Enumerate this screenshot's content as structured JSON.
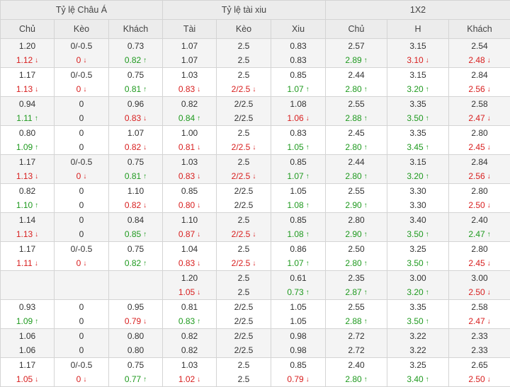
{
  "headers": {
    "groups": [
      "Tỷ lệ Châu Á",
      "Tỷ lệ tài xiu",
      "1X2"
    ],
    "columns": [
      "Chủ",
      "Kèo",
      "Khách",
      "Tài",
      "Kèo",
      "Xiu",
      "Chủ",
      "H",
      "Khách"
    ]
  },
  "colors": {
    "up": "#1f9a1f",
    "down": "#d81e1e",
    "header_bg": "#ececec",
    "alt_row_bg": "#f4f4f4"
  },
  "icons": {
    "up": "↑",
    "down": "↓"
  },
  "rows": [
    {
      "cells": [
        [
          [
            "1.20",
            ""
          ],
          [
            "1.12",
            "down"
          ]
        ],
        [
          [
            "0/-0.5",
            ""
          ],
          [
            "0",
            "down"
          ]
        ],
        [
          [
            "0.73",
            ""
          ],
          [
            "0.82",
            "up"
          ]
        ],
        [
          [
            "1.07",
            ""
          ],
          [
            "1.07",
            ""
          ]
        ],
        [
          [
            "2.5",
            ""
          ],
          [
            "2.5",
            ""
          ]
        ],
        [
          [
            "0.83",
            ""
          ],
          [
            "0.83",
            ""
          ]
        ],
        [
          [
            "2.57",
            ""
          ],
          [
            "2.89",
            "up"
          ]
        ],
        [
          [
            "3.15",
            ""
          ],
          [
            "3.10",
            "down"
          ]
        ],
        [
          [
            "2.54",
            ""
          ],
          [
            "2.48",
            "down"
          ]
        ]
      ]
    },
    {
      "cells": [
        [
          [
            "1.17",
            ""
          ],
          [
            "1.13",
            "down"
          ]
        ],
        [
          [
            "0/-0.5",
            ""
          ],
          [
            "0",
            "down"
          ]
        ],
        [
          [
            "0.75",
            ""
          ],
          [
            "0.81",
            "up"
          ]
        ],
        [
          [
            "1.03",
            ""
          ],
          [
            "0.83",
            "down"
          ]
        ],
        [
          [
            "2.5",
            ""
          ],
          [
            "2/2.5",
            "down"
          ]
        ],
        [
          [
            "0.85",
            ""
          ],
          [
            "1.07",
            "up"
          ]
        ],
        [
          [
            "2.44",
            ""
          ],
          [
            "2.80",
            "up"
          ]
        ],
        [
          [
            "3.15",
            ""
          ],
          [
            "3.20",
            "up"
          ]
        ],
        [
          [
            "2.84",
            ""
          ],
          [
            "2.56",
            "down"
          ]
        ]
      ]
    },
    {
      "cells": [
        [
          [
            "0.94",
            ""
          ],
          [
            "1.11",
            "up"
          ]
        ],
        [
          [
            "0",
            ""
          ],
          [
            "0",
            ""
          ]
        ],
        [
          [
            "0.96",
            ""
          ],
          [
            "0.83",
            "down"
          ]
        ],
        [
          [
            "0.82",
            ""
          ],
          [
            "0.84",
            "up"
          ]
        ],
        [
          [
            "2/2.5",
            ""
          ],
          [
            "2/2.5",
            ""
          ]
        ],
        [
          [
            "1.08",
            ""
          ],
          [
            "1.06",
            "down"
          ]
        ],
        [
          [
            "2.55",
            ""
          ],
          [
            "2.88",
            "up"
          ]
        ],
        [
          [
            "3.35",
            ""
          ],
          [
            "3.50",
            "up"
          ]
        ],
        [
          [
            "2.58",
            ""
          ],
          [
            "2.47",
            "down"
          ]
        ]
      ]
    },
    {
      "cells": [
        [
          [
            "0.80",
            ""
          ],
          [
            "1.09",
            "up"
          ]
        ],
        [
          [
            "0",
            ""
          ],
          [
            "0",
            ""
          ]
        ],
        [
          [
            "1.07",
            ""
          ],
          [
            "0.82",
            "down"
          ]
        ],
        [
          [
            "1.00",
            ""
          ],
          [
            "0.81",
            "down"
          ]
        ],
        [
          [
            "2.5",
            ""
          ],
          [
            "2/2.5",
            "down"
          ]
        ],
        [
          [
            "0.83",
            ""
          ],
          [
            "1.05",
            "up"
          ]
        ],
        [
          [
            "2.45",
            ""
          ],
          [
            "2.80",
            "up"
          ]
        ],
        [
          [
            "3.35",
            ""
          ],
          [
            "3.45",
            "up"
          ]
        ],
        [
          [
            "2.80",
            ""
          ],
          [
            "2.45",
            "down"
          ]
        ]
      ]
    },
    {
      "cells": [
        [
          [
            "1.17",
            ""
          ],
          [
            "1.13",
            "down"
          ]
        ],
        [
          [
            "0/-0.5",
            ""
          ],
          [
            "0",
            "down"
          ]
        ],
        [
          [
            "0.75",
            ""
          ],
          [
            "0.81",
            "up"
          ]
        ],
        [
          [
            "1.03",
            ""
          ],
          [
            "0.83",
            "down"
          ]
        ],
        [
          [
            "2.5",
            ""
          ],
          [
            "2/2.5",
            "down"
          ]
        ],
        [
          [
            "0.85",
            ""
          ],
          [
            "1.07",
            "up"
          ]
        ],
        [
          [
            "2.44",
            ""
          ],
          [
            "2.80",
            "up"
          ]
        ],
        [
          [
            "3.15",
            ""
          ],
          [
            "3.20",
            "up"
          ]
        ],
        [
          [
            "2.84",
            ""
          ],
          [
            "2.56",
            "down"
          ]
        ]
      ]
    },
    {
      "cells": [
        [
          [
            "0.82",
            ""
          ],
          [
            "1.10",
            "up"
          ]
        ],
        [
          [
            "0",
            ""
          ],
          [
            "0",
            ""
          ]
        ],
        [
          [
            "1.10",
            ""
          ],
          [
            "0.82",
            "down"
          ]
        ],
        [
          [
            "0.85",
            ""
          ],
          [
            "0.80",
            "down"
          ]
        ],
        [
          [
            "2/2.5",
            ""
          ],
          [
            "2/2.5",
            ""
          ]
        ],
        [
          [
            "1.05",
            ""
          ],
          [
            "1.08",
            "up"
          ]
        ],
        [
          [
            "2.55",
            ""
          ],
          [
            "2.90",
            "up"
          ]
        ],
        [
          [
            "3.30",
            ""
          ],
          [
            "3.30",
            ""
          ]
        ],
        [
          [
            "2.80",
            ""
          ],
          [
            "2.50",
            "down"
          ]
        ]
      ]
    },
    {
      "cells": [
        [
          [
            "1.14",
            ""
          ],
          [
            "1.13",
            "down"
          ]
        ],
        [
          [
            "0",
            ""
          ],
          [
            "0",
            ""
          ]
        ],
        [
          [
            "0.84",
            ""
          ],
          [
            "0.85",
            "up"
          ]
        ],
        [
          [
            "1.10",
            ""
          ],
          [
            "0.87",
            "down"
          ]
        ],
        [
          [
            "2.5",
            ""
          ],
          [
            "2/2.5",
            "down"
          ]
        ],
        [
          [
            "0.85",
            ""
          ],
          [
            "1.08",
            "up"
          ]
        ],
        [
          [
            "2.80",
            ""
          ],
          [
            "2.90",
            "up"
          ]
        ],
        [
          [
            "3.40",
            ""
          ],
          [
            "3.50",
            "up"
          ]
        ],
        [
          [
            "2.40",
            ""
          ],
          [
            "2.47",
            "up"
          ]
        ]
      ]
    },
    {
      "cells": [
        [
          [
            "1.17",
            ""
          ],
          [
            "1.11",
            "down"
          ]
        ],
        [
          [
            "0/-0.5",
            ""
          ],
          [
            "0",
            "down"
          ]
        ],
        [
          [
            "0.75",
            ""
          ],
          [
            "0.82",
            "up"
          ]
        ],
        [
          [
            "1.04",
            ""
          ],
          [
            "0.83",
            "down"
          ]
        ],
        [
          [
            "2.5",
            ""
          ],
          [
            "2/2.5",
            "down"
          ]
        ],
        [
          [
            "0.86",
            ""
          ],
          [
            "1.07",
            "up"
          ]
        ],
        [
          [
            "2.50",
            ""
          ],
          [
            "2.80",
            "up"
          ]
        ],
        [
          [
            "3.25",
            ""
          ],
          [
            "3.50",
            "up"
          ]
        ],
        [
          [
            "2.80",
            ""
          ],
          [
            "2.45",
            "down"
          ]
        ]
      ]
    },
    {
      "cells": [
        [],
        [],
        [],
        [
          [
            "1.20",
            ""
          ],
          [
            "1.05",
            "down"
          ]
        ],
        [
          [
            "2.5",
            ""
          ],
          [
            "2.5",
            ""
          ]
        ],
        [
          [
            "0.61",
            ""
          ],
          [
            "0.73",
            "up"
          ]
        ],
        [
          [
            "2.35",
            ""
          ],
          [
            "2.87",
            "up"
          ]
        ],
        [
          [
            "3.00",
            ""
          ],
          [
            "3.20",
            "up"
          ]
        ],
        [
          [
            "3.00",
            ""
          ],
          [
            "2.50",
            "down"
          ]
        ]
      ]
    },
    {
      "cells": [
        [
          [
            "0.93",
            ""
          ],
          [
            "1.09",
            "up"
          ]
        ],
        [
          [
            "0",
            ""
          ],
          [
            "0",
            ""
          ]
        ],
        [
          [
            "0.95",
            ""
          ],
          [
            "0.79",
            "down"
          ]
        ],
        [
          [
            "0.81",
            ""
          ],
          [
            "0.83",
            "up"
          ]
        ],
        [
          [
            "2/2.5",
            ""
          ],
          [
            "2/2.5",
            ""
          ]
        ],
        [
          [
            "1.05",
            ""
          ],
          [
            "1.05",
            ""
          ]
        ],
        [
          [
            "2.55",
            ""
          ],
          [
            "2.88",
            "up"
          ]
        ],
        [
          [
            "3.35",
            ""
          ],
          [
            "3.50",
            "up"
          ]
        ],
        [
          [
            "2.58",
            ""
          ],
          [
            "2.47",
            "down"
          ]
        ]
      ]
    },
    {
      "cells": [
        [
          [
            "1.06",
            ""
          ],
          [
            "1.06",
            ""
          ]
        ],
        [
          [
            "0",
            ""
          ],
          [
            "0",
            ""
          ]
        ],
        [
          [
            "0.80",
            ""
          ],
          [
            "0.80",
            ""
          ]
        ],
        [
          [
            "0.82",
            ""
          ],
          [
            "0.82",
            ""
          ]
        ],
        [
          [
            "2/2.5",
            ""
          ],
          [
            "2/2.5",
            ""
          ]
        ],
        [
          [
            "0.98",
            ""
          ],
          [
            "0.98",
            ""
          ]
        ],
        [
          [
            "2.72",
            ""
          ],
          [
            "2.72",
            ""
          ]
        ],
        [
          [
            "3.22",
            ""
          ],
          [
            "3.22",
            ""
          ]
        ],
        [
          [
            "2.33",
            ""
          ],
          [
            "2.33",
            ""
          ]
        ]
      ]
    },
    {
      "cells": [
        [
          [
            "1.17",
            ""
          ],
          [
            "1.05",
            "down"
          ]
        ],
        [
          [
            "0/-0.5",
            ""
          ],
          [
            "0",
            "down"
          ]
        ],
        [
          [
            "0.75",
            ""
          ],
          [
            "0.77",
            "up"
          ]
        ],
        [
          [
            "1.03",
            ""
          ],
          [
            "1.02",
            "down"
          ]
        ],
        [
          [
            "2.5",
            ""
          ],
          [
            "2.5",
            ""
          ]
        ],
        [
          [
            "0.85",
            ""
          ],
          [
            "0.79",
            "down"
          ]
        ],
        [
          [
            "2.40",
            ""
          ],
          [
            "2.80",
            "up"
          ]
        ],
        [
          [
            "3.25",
            ""
          ],
          [
            "3.40",
            "up"
          ]
        ],
        [
          [
            "2.65",
            ""
          ],
          [
            "2.50",
            "down"
          ]
        ]
      ]
    }
  ]
}
